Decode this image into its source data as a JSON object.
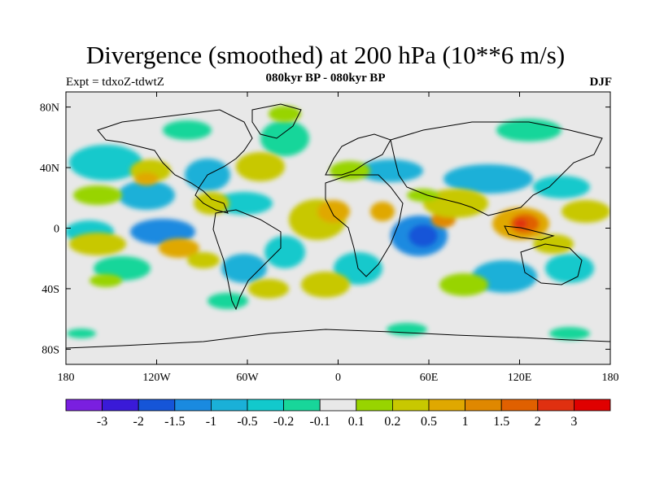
{
  "figure": {
    "title": "Divergence (smoothed) at 200 hPa (10**6 m/s)",
    "subtitle": "080kyr BP - 080kyr BP",
    "expt_label": "Expt = tdxoZ-tdwtZ",
    "season": "DJF"
  },
  "map": {
    "projection": "cylindrical-equidistant",
    "lon_range": [
      -180,
      180
    ],
    "lat_range": [
      -90,
      90
    ],
    "lat_ticks": [
      {
        "value": 80,
        "label": "80N"
      },
      {
        "value": 40,
        "label": "40N"
      },
      {
        "value": 0,
        "label": "0"
      },
      {
        "value": -40,
        "label": "40S"
      },
      {
        "value": -80,
        "label": "80S"
      }
    ],
    "lon_ticks": [
      {
        "value": -180,
        "label": "180"
      },
      {
        "value": -120,
        "label": "120W"
      },
      {
        "value": -60,
        "label": "60W"
      },
      {
        "value": 0,
        "label": "0"
      },
      {
        "value": 60,
        "label": "60E"
      },
      {
        "value": 120,
        "label": "120E"
      },
      {
        "value": 180,
        "label": "180"
      }
    ],
    "background_color": "#e8e8e8",
    "coastline_color": "#000000"
  },
  "colorbar": {
    "colors": [
      "#7a1fe0",
      "#3a1ad8",
      "#1555d8",
      "#1a8ae0",
      "#1ab0d8",
      "#12c9cc",
      "#18d69a",
      "#e8e8e8",
      "#98d400",
      "#c8c800",
      "#e0a800",
      "#e08800",
      "#e06000",
      "#e03010",
      "#e00000"
    ],
    "labels": [
      "-3",
      "-2",
      "-1.5",
      "-1",
      "-0.5",
      "-0.2",
      "-0.1",
      "0.1",
      "0.2",
      "0.5",
      "1",
      "1.5",
      "2",
      "3"
    ]
  }
}
